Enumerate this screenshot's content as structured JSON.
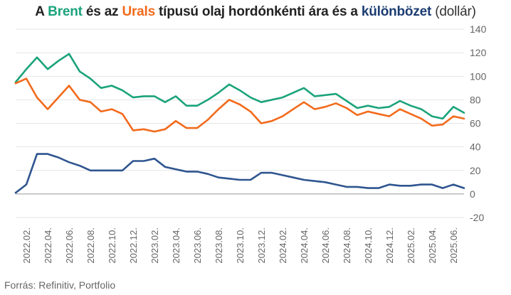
{
  "title": {
    "prefix": "A ",
    "brent": "Brent",
    "mid1": " és az ",
    "urals": "Urals",
    "mid2": " típusú olaj hordónkénti ára és a ",
    "diff": "különbözet",
    "unit": " (dollár)"
  },
  "source": "Forrás: Refinitiv, Portfolio",
  "colors": {
    "brent": "#1aa37a",
    "urals": "#f26a1b",
    "diff": "#2f5590",
    "grid": "#dddddd",
    "zero": "#999999"
  },
  "chart_data": {
    "type": "line",
    "x_unit": "month",
    "ylim": [
      -20,
      140
    ],
    "yticks": [
      -20,
      0,
      20,
      40,
      60,
      80,
      100,
      120,
      140
    ],
    "xticks": [
      "2022.02.",
      "2022.04.",
      "2022.06.",
      "2022.08.",
      "2022.10.",
      "2022.12.",
      "2023.02.",
      "2023.04.",
      "2023.06.",
      "2023.08.",
      "2023.10.",
      "2023.12.",
      "2024.02.",
      "2024.04.",
      "2024.06.",
      "2024.08.",
      "2024.10.",
      "2024.12.",
      "2025.02.",
      "2025.04.",
      "2025.06."
    ],
    "grid": "horizontal",
    "series": [
      {
        "name": "Brent",
        "color": "#1aa37a",
        "x": [
          "2022.01.",
          "2022.02.",
          "2022.03.",
          "2022.04.",
          "2022.05.",
          "2022.06.",
          "2022.07.",
          "2022.08.",
          "2022.09.",
          "2022.10.",
          "2022.11.",
          "2022.12.",
          "2023.01.",
          "2023.02.",
          "2023.03.",
          "2023.04.",
          "2023.05.",
          "2023.06.",
          "2023.07.",
          "2023.08.",
          "2023.09.",
          "2023.10.",
          "2023.11.",
          "2023.12.",
          "2024.01.",
          "2024.02.",
          "2024.03.",
          "2024.04.",
          "2024.05.",
          "2024.06.",
          "2024.07.",
          "2024.08.",
          "2024.09.",
          "2024.10.",
          "2024.11.",
          "2024.12.",
          "2025.01.",
          "2025.02.",
          "2025.03.",
          "2025.04.",
          "2025.05.",
          "2025.06.",
          "2025.07."
        ],
        "values": [
          95,
          106,
          116,
          106,
          113,
          119,
          104,
          98,
          90,
          92,
          88,
          82,
          83,
          83,
          78,
          83,
          75,
          75,
          80,
          86,
          93,
          88,
          82,
          78,
          80,
          82,
          86,
          90,
          83,
          84,
          85,
          79,
          73,
          75,
          73,
          74,
          79,
          75,
          72,
          66,
          64,
          74,
          69
        ]
      },
      {
        "name": "Urals",
        "color": "#f26a1b",
        "x": [
          "2022.01.",
          "2022.02.",
          "2022.03.",
          "2022.04.",
          "2022.05.",
          "2022.06.",
          "2022.07.",
          "2022.08.",
          "2022.09.",
          "2022.10.",
          "2022.11.",
          "2022.12.",
          "2023.01.",
          "2023.02.",
          "2023.03.",
          "2023.04.",
          "2023.05.",
          "2023.06.",
          "2023.07.",
          "2023.08.",
          "2023.09.",
          "2023.10.",
          "2023.11.",
          "2023.12.",
          "2024.01.",
          "2024.02.",
          "2024.03.",
          "2024.04.",
          "2024.05.",
          "2024.06.",
          "2024.07.",
          "2024.08.",
          "2024.09.",
          "2024.10.",
          "2024.11.",
          "2024.12.",
          "2025.01.",
          "2025.02.",
          "2025.03.",
          "2025.04.",
          "2025.05.",
          "2025.06.",
          "2025.07."
        ],
        "values": [
          94,
          98,
          82,
          72,
          82,
          92,
          80,
          78,
          70,
          72,
          68,
          54,
          55,
          53,
          55,
          62,
          56,
          56,
          63,
          72,
          80,
          76,
          70,
          60,
          62,
          66,
          72,
          78,
          72,
          74,
          77,
          73,
          67,
          70,
          68,
          66,
          72,
          68,
          64,
          58,
          59,
          66,
          64
        ]
      },
      {
        "name": "különbözet",
        "color": "#2f5590",
        "x": [
          "2022.01.",
          "2022.02.",
          "2022.03.",
          "2022.04.",
          "2022.05.",
          "2022.06.",
          "2022.07.",
          "2022.08.",
          "2022.09.",
          "2022.10.",
          "2022.11.",
          "2022.12.",
          "2023.01.",
          "2023.02.",
          "2023.03.",
          "2023.04.",
          "2023.05.",
          "2023.06.",
          "2023.07.",
          "2023.08.",
          "2023.09.",
          "2023.10.",
          "2023.11.",
          "2023.12.",
          "2024.01.",
          "2024.02.",
          "2024.03.",
          "2024.04.",
          "2024.05.",
          "2024.06.",
          "2024.07.",
          "2024.08.",
          "2024.09.",
          "2024.10.",
          "2024.11.",
          "2024.12.",
          "2025.01.",
          "2025.02.",
          "2025.03.",
          "2025.04.",
          "2025.05.",
          "2025.06.",
          "2025.07."
        ],
        "values": [
          1,
          8,
          34,
          34,
          31,
          27,
          24,
          20,
          20,
          20,
          20,
          28,
          28,
          30,
          23,
          21,
          19,
          19,
          17,
          14,
          13,
          12,
          12,
          18,
          18,
          16,
          14,
          12,
          11,
          10,
          8,
          6,
          6,
          5,
          5,
          8,
          7,
          7,
          8,
          8,
          5,
          8,
          5
        ]
      }
    ]
  }
}
